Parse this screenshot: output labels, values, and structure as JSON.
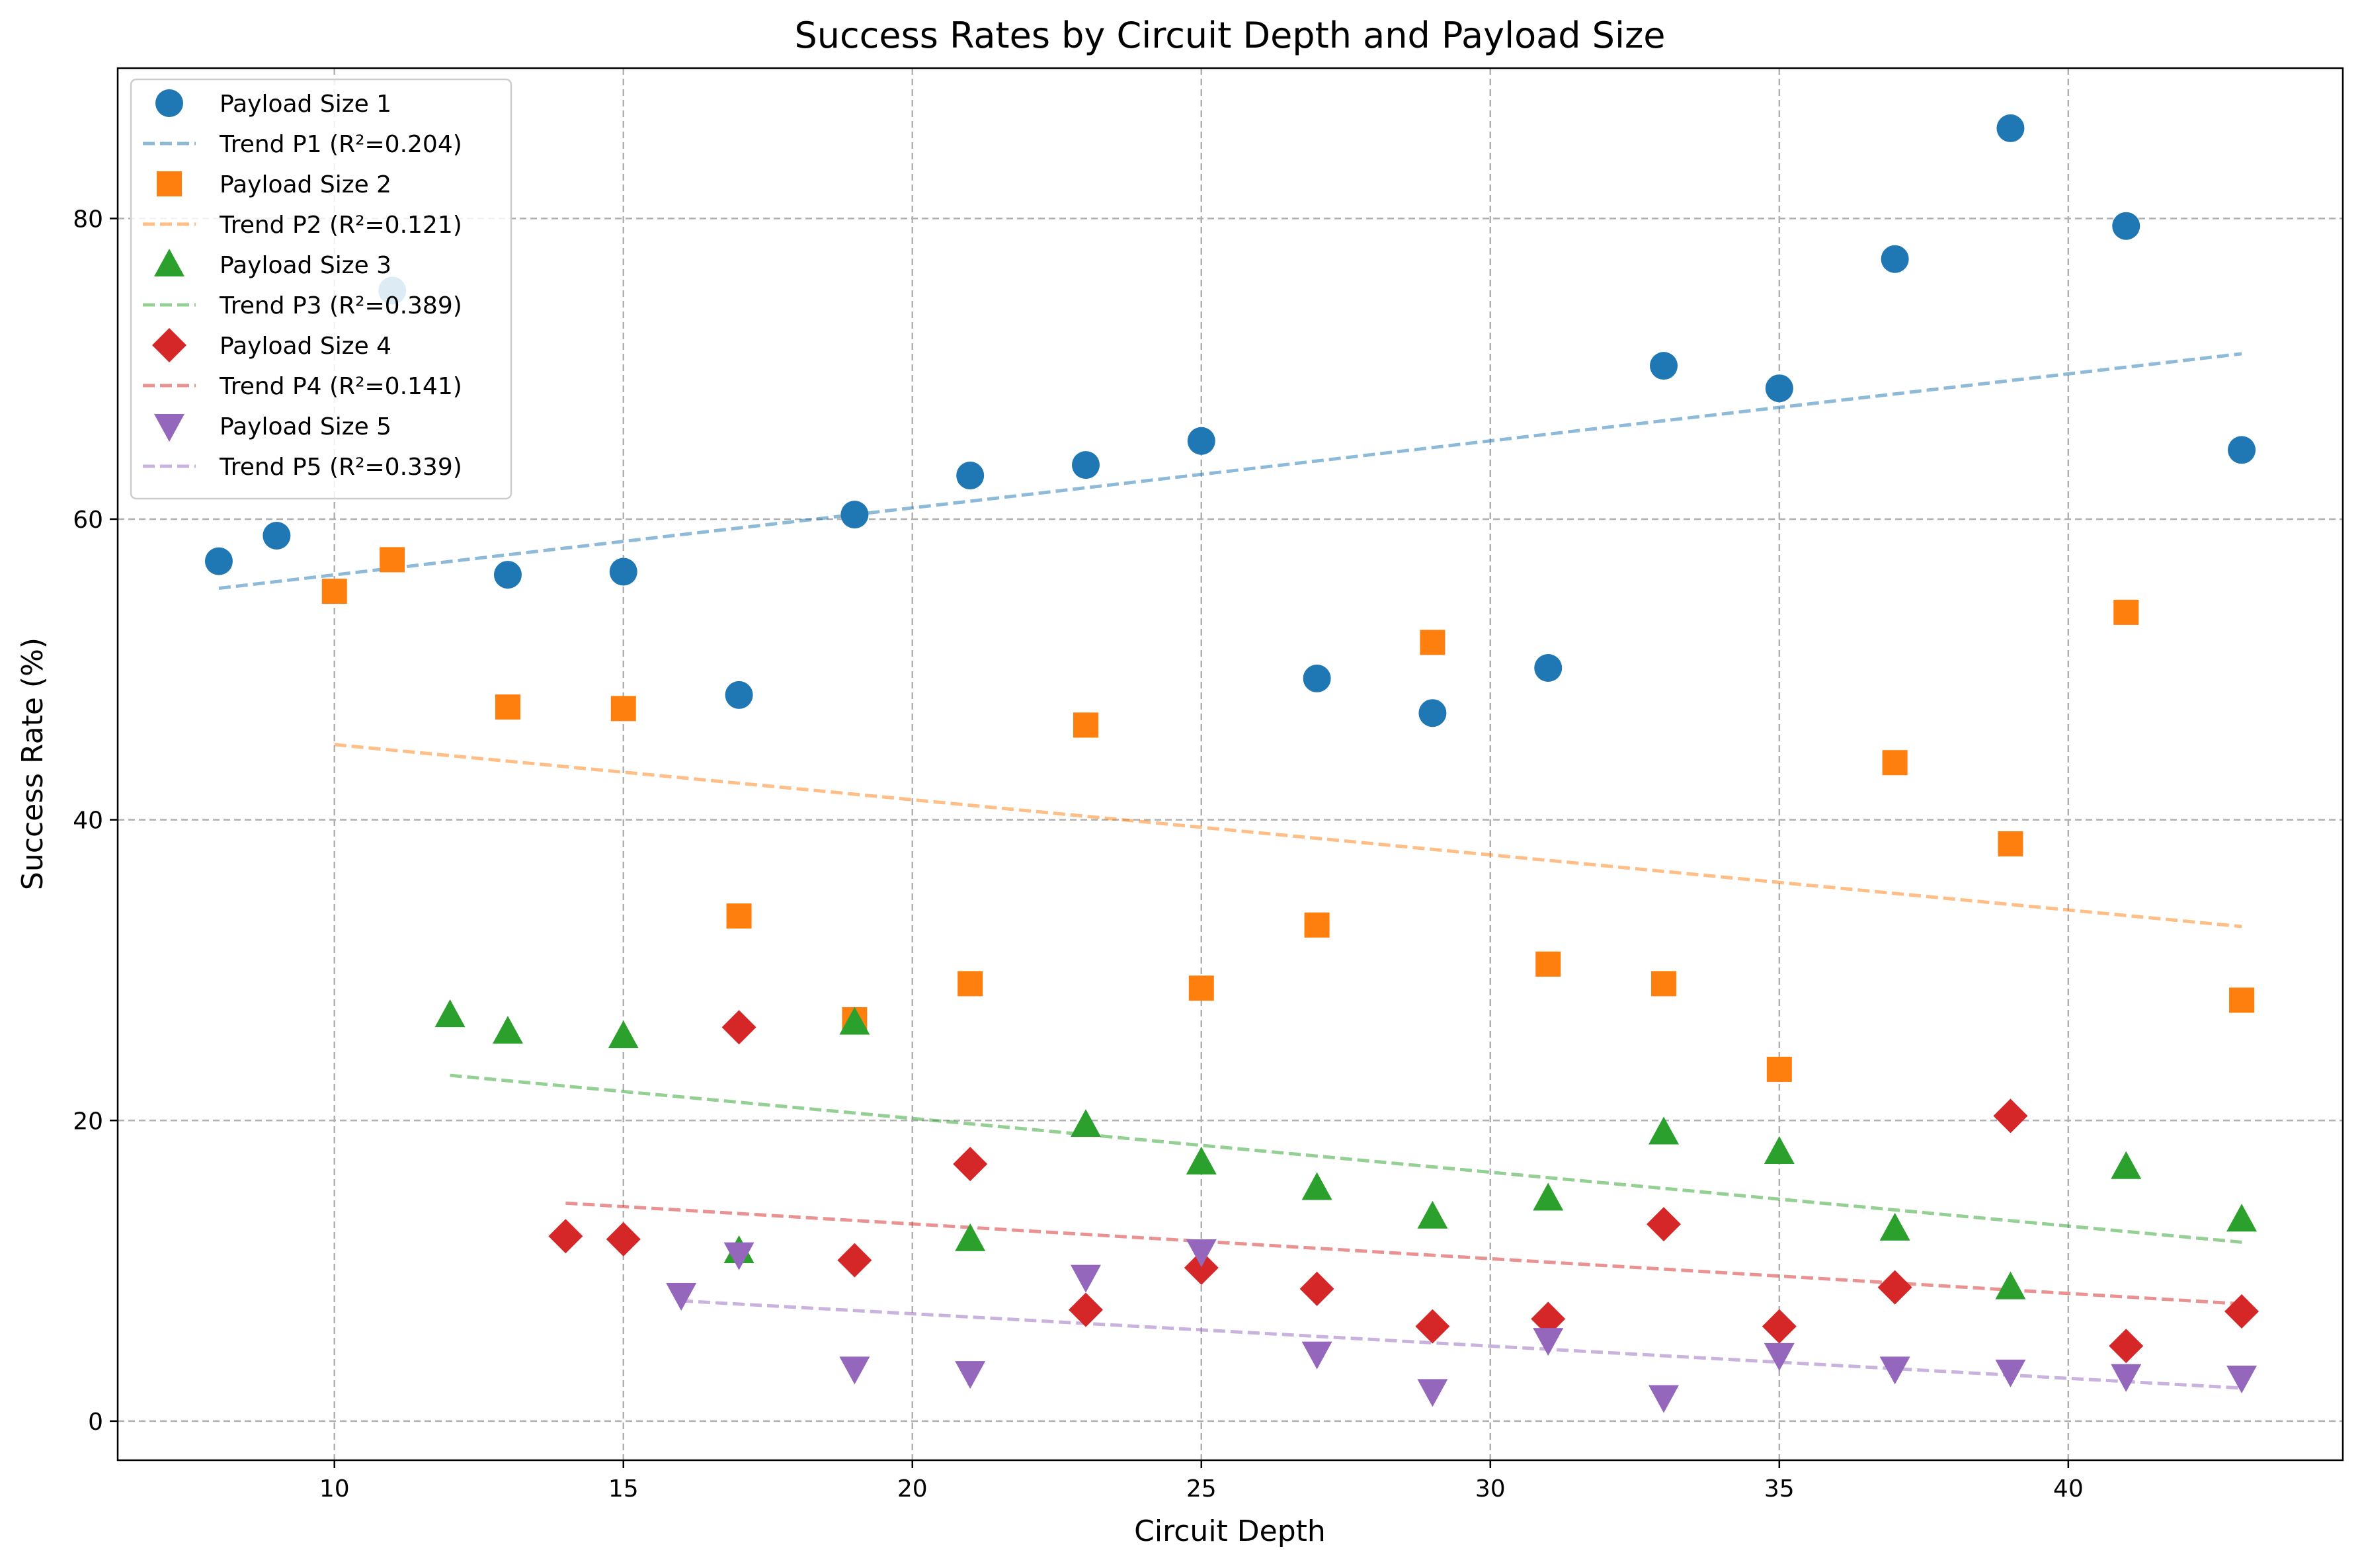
{
  "chart_data": {
    "type": "scatter",
    "title": "Success Rates by Circuit Depth and Payload Size",
    "xlabel": "Circuit Depth",
    "ylabel": "Success Rate (%)",
    "xlim": [
      6.25,
      44.75
    ],
    "ylim": [
      -2.6,
      90.0
    ],
    "xticks": [
      10,
      15,
      20,
      25,
      30,
      35,
      40
    ],
    "yticks": [
      0,
      20,
      40,
      60,
      80
    ],
    "grid": true,
    "legend_position": "top-left",
    "series": [
      {
        "name": "Payload Size 1",
        "marker": "circle",
        "color": "#1f77b4",
        "x": [
          8,
          9,
          11,
          13,
          15,
          17,
          19,
          21,
          23,
          25,
          27,
          29,
          31,
          33,
          35,
          37,
          39,
          41,
          43
        ],
        "y": [
          57.2,
          58.9,
          75.2,
          56.3,
          56.5,
          48.3,
          60.3,
          62.9,
          63.6,
          65.2,
          49.4,
          47.1,
          50.1,
          70.2,
          68.7,
          77.3,
          86.0,
          79.5,
          64.6
        ],
        "trend": {
          "label": "Trend P1 (R²=0.204)",
          "x": [
            8,
            43
          ],
          "y": [
            55.4,
            71.0
          ]
        }
      },
      {
        "name": "Payload Size 2",
        "marker": "square",
        "color": "#ff7f0e",
        "x": [
          10,
          11,
          13,
          15,
          17,
          19,
          21,
          23,
          25,
          27,
          29,
          31,
          33,
          35,
          37,
          39,
          41,
          43
        ],
        "y": [
          55.2,
          57.3,
          47.5,
          47.4,
          33.6,
          26.7,
          29.1,
          46.3,
          28.8,
          33.0,
          51.8,
          30.4,
          29.1,
          23.4,
          43.8,
          38.4,
          53.8,
          28.0
        ],
        "trend": {
          "label": "Trend P2 (R²=0.121)",
          "x": [
            10,
            43
          ],
          "y": [
            45.0,
            32.9
          ]
        }
      },
      {
        "name": "Payload Size 3",
        "marker": "triangle-up",
        "color": "#2ca02c",
        "x": [
          12,
          13,
          15,
          17,
          19,
          21,
          23,
          25,
          27,
          29,
          31,
          33,
          35,
          37,
          39,
          41,
          43
        ],
        "y": [
          27.0,
          25.9,
          25.6,
          11.3,
          26.5,
          12.1,
          19.7,
          17.2,
          15.5,
          13.6,
          14.8,
          19.2,
          17.9,
          12.8,
          8.9,
          16.9,
          13.4
        ],
        "trend": {
          "label": "Trend P3 (R²=0.389)",
          "x": [
            12,
            43
          ],
          "y": [
            23.0,
            11.9
          ]
        }
      },
      {
        "name": "Payload Size 4",
        "marker": "diamond",
        "color": "#d62728",
        "x": [
          14,
          15,
          17,
          19,
          21,
          23,
          25,
          27,
          29,
          31,
          33,
          35,
          37,
          39,
          41,
          43
        ],
        "y": [
          12.3,
          12.1,
          26.2,
          10.7,
          17.1,
          7.4,
          10.2,
          8.8,
          6.3,
          6.8,
          13.1,
          6.3,
          8.9,
          20.3,
          5.0,
          7.3
        ],
        "trend": {
          "label": "Trend P4 (R²=0.141)",
          "x": [
            14,
            43
          ],
          "y": [
            14.5,
            7.8
          ]
        }
      },
      {
        "name": "Payload Size 5",
        "marker": "triangle-down",
        "color": "#9467bd",
        "x": [
          16,
          17,
          19,
          21,
          23,
          25,
          27,
          29,
          31,
          33,
          35,
          37,
          39,
          41,
          43
        ],
        "y": [
          8.4,
          11.1,
          3.5,
          3.2,
          9.6,
          11.3,
          4.5,
          2.0,
          5.4,
          1.6,
          4.4,
          3.5,
          3.3,
          3.0,
          2.9
        ],
        "trend": {
          "label": "Trend P5 (R²=0.339)",
          "x": [
            16,
            43
          ],
          "y": [
            8.0,
            2.2
          ]
        }
      }
    ]
  }
}
